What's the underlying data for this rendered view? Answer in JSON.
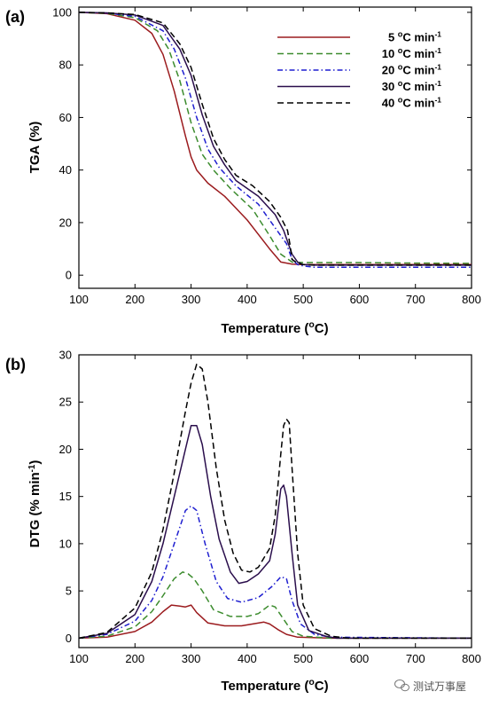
{
  "chart_data": [
    {
      "panel_label": "(a)",
      "type": "line",
      "xlabel": "Temperature (°C)",
      "ylabel": "TGA (%)",
      "xlim": [
        100,
        800
      ],
      "ylim": [
        -5,
        102
      ],
      "xticks": [
        100,
        200,
        300,
        400,
        500,
        600,
        700,
        800
      ],
      "yticks": [
        0,
        20,
        40,
        60,
        80,
        100
      ],
      "grid": false,
      "legend_position": "top-right",
      "series": [
        {
          "name": "5 °C min-1",
          "color": "#9b1b1e",
          "dash": "solid",
          "x": [
            100,
            150,
            200,
            230,
            250,
            270,
            290,
            300,
            310,
            330,
            360,
            400,
            440,
            460,
            480,
            500,
            550,
            600,
            700,
            800
          ],
          "y": [
            100,
            99.5,
            97,
            92,
            84,
            70,
            53,
            45,
            40,
            35,
            30,
            21,
            10,
            5,
            4.2,
            4,
            4,
            4,
            4,
            4
          ]
        },
        {
          "name": "10 °C min-1",
          "color": "#3c8c2e",
          "dash": "dashed",
          "x": [
            100,
            150,
            200,
            240,
            260,
            280,
            300,
            320,
            340,
            370,
            410,
            440,
            460,
            480,
            500,
            520,
            550,
            600,
            700,
            800
          ],
          "y": [
            100,
            99.6,
            98,
            93,
            86,
            74,
            58,
            46,
            40,
            33,
            25,
            15,
            8,
            5,
            4.8,
            4.8,
            4.8,
            4.8,
            4.6,
            4.5
          ]
        },
        {
          "name": "20 °C min-1",
          "color": "#1f1fd0",
          "dash": "dashdot",
          "x": [
            100,
            150,
            200,
            250,
            270,
            290,
            310,
            330,
            350,
            380,
            420,
            450,
            470,
            480,
            490,
            500,
            520,
            550,
            600,
            700,
            800
          ],
          "y": [
            100,
            99.7,
            98.5,
            93,
            86,
            75,
            60,
            48,
            41,
            34,
            27,
            18,
            12,
            6,
            4,
            3.5,
            3,
            3,
            3,
            3,
            3
          ]
        },
        {
          "name": "30 °C min-1",
          "color": "#2a0e4c",
          "dash": "solid",
          "x": [
            100,
            150,
            200,
            250,
            280,
            300,
            320,
            340,
            360,
            380,
            420,
            450,
            465,
            470,
            480,
            490,
            500,
            520,
            550,
            600,
            700,
            800
          ],
          "y": [
            100,
            99.8,
            99,
            95,
            86,
            76,
            61,
            49,
            42,
            36,
            30,
            23,
            17,
            14,
            8,
            5,
            4,
            3.8,
            3.8,
            3.8,
            3.8,
            3.8
          ]
        },
        {
          "name": "40 °C min-1",
          "color": "#000000",
          "dash": "dashed",
          "x": [
            100,
            150,
            200,
            250,
            280,
            300,
            320,
            340,
            360,
            380,
            410,
            440,
            460,
            472,
            476,
            480,
            490,
            500,
            520,
            550,
            600,
            700,
            800
          ],
          "y": [
            100,
            99.8,
            99.2,
            96,
            88,
            79,
            65,
            52,
            44,
            38,
            34,
            28,
            22,
            17,
            12,
            6,
            4.5,
            4,
            3.8,
            3.8,
            3.8,
            3.8,
            3.8
          ]
        }
      ]
    },
    {
      "panel_label": "(b)",
      "type": "line",
      "xlabel": "Temperature (°C)",
      "ylabel": "DTG (% min-1)",
      "xlim": [
        100,
        800
      ],
      "ylim": [
        -1,
        30
      ],
      "xticks": [
        100,
        200,
        300,
        400,
        500,
        600,
        700,
        800
      ],
      "yticks": [
        0,
        5,
        10,
        15,
        20,
        25,
        30
      ],
      "grid": false,
      "series": [
        {
          "name": "5 °C min-1",
          "color": "#9b1b1e",
          "dash": "solid",
          "x": [
            100,
            150,
            200,
            230,
            250,
            265,
            280,
            290,
            300,
            310,
            330,
            360,
            390,
            410,
            430,
            440,
            455,
            470,
            490,
            550,
            800
          ],
          "y": [
            0,
            0.1,
            0.7,
            1.7,
            2.8,
            3.5,
            3.4,
            3.3,
            3.5,
            2.7,
            1.6,
            1.3,
            1.3,
            1.5,
            1.7,
            1.5,
            0.9,
            0.4,
            0.1,
            0,
            0
          ]
        },
        {
          "name": "10 °C min-1",
          "color": "#3c8c2e",
          "dash": "dashed",
          "x": [
            100,
            150,
            200,
            230,
            250,
            270,
            285,
            295,
            305,
            320,
            340,
            370,
            400,
            420,
            440,
            450,
            465,
            480,
            500,
            550,
            800
          ],
          "y": [
            0,
            0.2,
            1.2,
            2.8,
            4.5,
            6.3,
            7,
            6.8,
            6.3,
            5,
            3,
            2.3,
            2.3,
            2.6,
            3.5,
            3.3,
            2,
            0.7,
            0.2,
            0,
            0
          ]
        },
        {
          "name": "20 °C min-1",
          "color": "#1f1fd0",
          "dash": "dashdot",
          "x": [
            100,
            150,
            200,
            230,
            250,
            270,
            290,
            300,
            310,
            325,
            345,
            365,
            390,
            420,
            445,
            460,
            470,
            480,
            495,
            520,
            550,
            800
          ],
          "y": [
            0,
            0.4,
            1.8,
            4,
            6.5,
            10,
            13.5,
            14,
            13.5,
            10,
            6,
            4.2,
            3.8,
            4.3,
            5.5,
            6.5,
            6.3,
            4,
            1.5,
            0.4,
            0.1,
            0
          ]
        },
        {
          "name": "30 °C min-1",
          "color": "#2a0e4c",
          "dash": "solid",
          "x": [
            100,
            150,
            200,
            230,
            250,
            270,
            290,
            300,
            310,
            320,
            335,
            350,
            370,
            385,
            400,
            420,
            440,
            450,
            460,
            465,
            470,
            480,
            490,
            510,
            540,
            560,
            800
          ],
          "y": [
            0,
            0.5,
            2.5,
            6,
            10,
            15,
            20,
            22.5,
            22.5,
            20.5,
            15,
            10.5,
            7,
            5.8,
            6,
            6.8,
            8.2,
            11,
            15.8,
            16.2,
            15,
            9,
            3.5,
            0.8,
            0.2,
            0,
            0
          ]
        },
        {
          "name": "40 °C min-1",
          "color": "#000000",
          "dash": "dashed",
          "x": [
            100,
            150,
            200,
            230,
            250,
            270,
            290,
            300,
            310,
            320,
            330,
            345,
            360,
            375,
            390,
            405,
            420,
            440,
            450,
            460,
            465,
            470,
            475,
            480,
            490,
            500,
            520,
            550,
            580,
            800
          ],
          "y": [
            0,
            0.6,
            3.2,
            7,
            11.5,
            17.5,
            24,
            27,
            29,
            28.5,
            25,
            18,
            12.5,
            9,
            7.2,
            7,
            7.5,
            9.5,
            13,
            19.5,
            22.5,
            23.2,
            22.8,
            18,
            9,
            3.5,
            1,
            0.2,
            0,
            0
          ]
        }
      ]
    }
  ],
  "watermark": "测试万事屋"
}
